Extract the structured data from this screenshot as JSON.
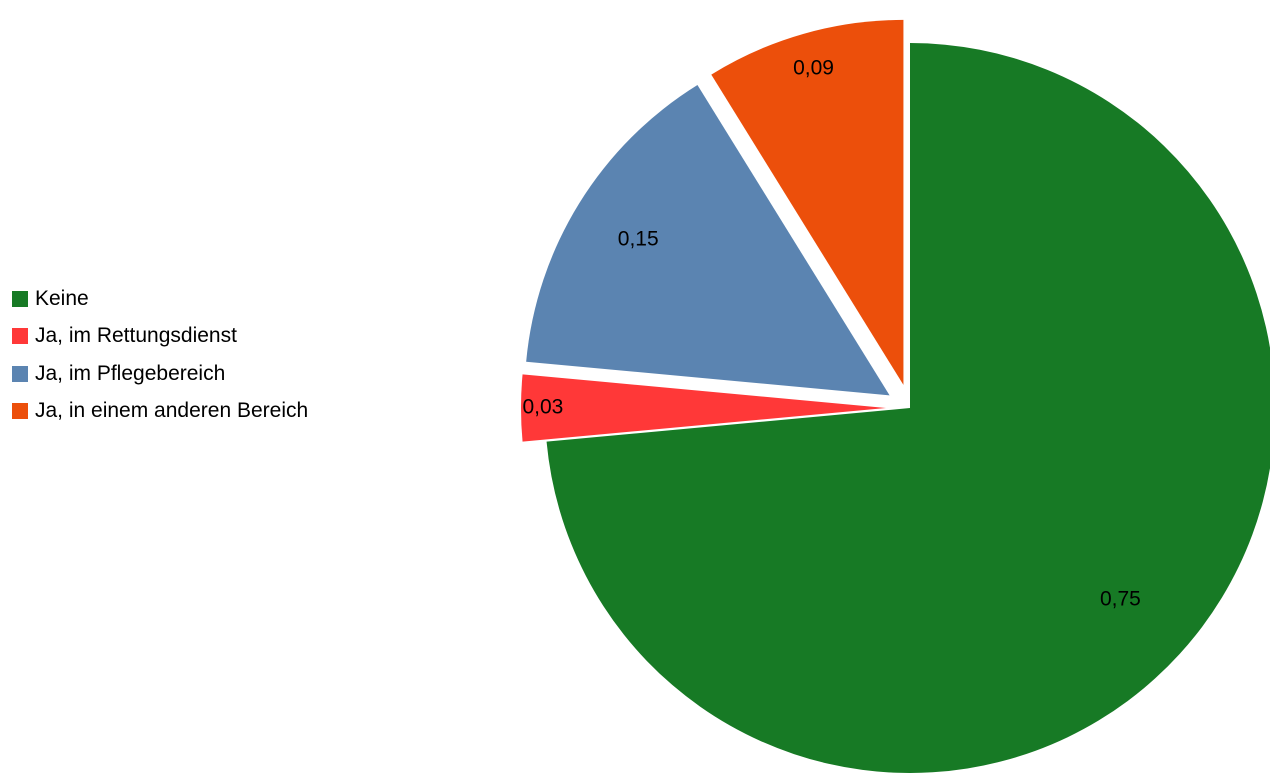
{
  "chart_data": {
    "type": "pie",
    "title": "",
    "legend_position": "left",
    "slices": [
      {
        "label": "Keine",
        "value": 0.75,
        "value_label": "0,75",
        "color": "#177a25",
        "exploded": false
      },
      {
        "label": "Ja, im Rettungsdienst",
        "value": 0.03,
        "value_label": "0,03",
        "color": "#ff3838",
        "exploded": true
      },
      {
        "label": "Ja, im Pflegebereich",
        "value": 0.15,
        "value_label": "0,15",
        "color": "#5b84b1",
        "exploded": true
      },
      {
        "label": "Ja, in einem anderen Bereich",
        "value": 0.09,
        "value_label": "0,09",
        "color": "#ec4f0b",
        "exploded": true
      }
    ]
  }
}
